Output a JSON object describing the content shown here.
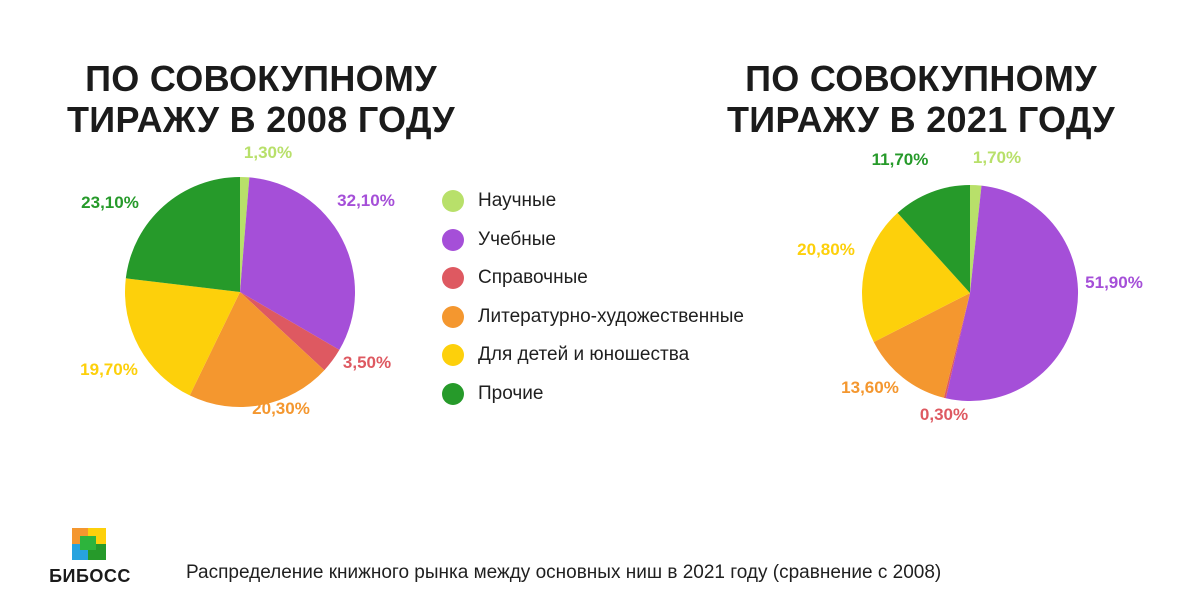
{
  "colors": {
    "science": "#b8e06a",
    "education": "#a54fd8",
    "reference": "#de5961",
    "fiction": "#f4972f",
    "children": "#fdd00b",
    "other": "#269a2a"
  },
  "legend": [
    {
      "label": "Научные",
      "color": "#b8e06a"
    },
    {
      "label": "Учебные",
      "color": "#a54fd8"
    },
    {
      "label": "Справочные",
      "color": "#de5961"
    },
    {
      "label": "Литературно-художественные",
      "color": "#f4972f"
    },
    {
      "label": "Для детей и юношества",
      "color": "#fdd00b"
    },
    {
      "label": "Прочие",
      "color": "#269a2a"
    }
  ],
  "chart_data": [
    {
      "type": "pie",
      "title": "ПО СОВОКУПНОМУ ТИРАЖУ В 2008 ГОДУ",
      "categories": [
        "Научные",
        "Учебные",
        "Справочные",
        "Литературно-художественные",
        "Для детей и юношества",
        "Прочие"
      ],
      "values": [
        1.3,
        32.1,
        3.5,
        20.3,
        19.7,
        23.1
      ],
      "value_labels": [
        "1,30%",
        "32,10%",
        "3,50%",
        "20,30%",
        "19,70%",
        "23,10%"
      ],
      "colors": [
        "#b8e06a",
        "#a54fd8",
        "#de5961",
        "#f4972f",
        "#fdd00b",
        "#269a2a"
      ],
      "start_angle_deg": 0,
      "direction": "clockwise"
    },
    {
      "type": "pie",
      "title": "ПО СОВОКУПНОМУ ТИРАЖУ В 2021 ГОДУ",
      "categories": [
        "Научные",
        "Учебные",
        "Справочные",
        "Литературно-художественные",
        "Для детей и юношества",
        "Прочие"
      ],
      "values": [
        1.7,
        51.9,
        0.3,
        13.6,
        20.8,
        11.7
      ],
      "value_labels": [
        "1,70%",
        "51,90%",
        "0,30%",
        "13,60%",
        "20,80%",
        "11,70%"
      ],
      "colors": [
        "#b8e06a",
        "#a54fd8",
        "#de5961",
        "#f4972f",
        "#fdd00b",
        "#269a2a"
      ],
      "start_angle_deg": 0,
      "direction": "clockwise"
    }
  ],
  "footer": {
    "brand": "БИБОСС",
    "caption": "Распределение книжного рынка между основных ниш в 2021 году (сравнение с 2008)"
  }
}
